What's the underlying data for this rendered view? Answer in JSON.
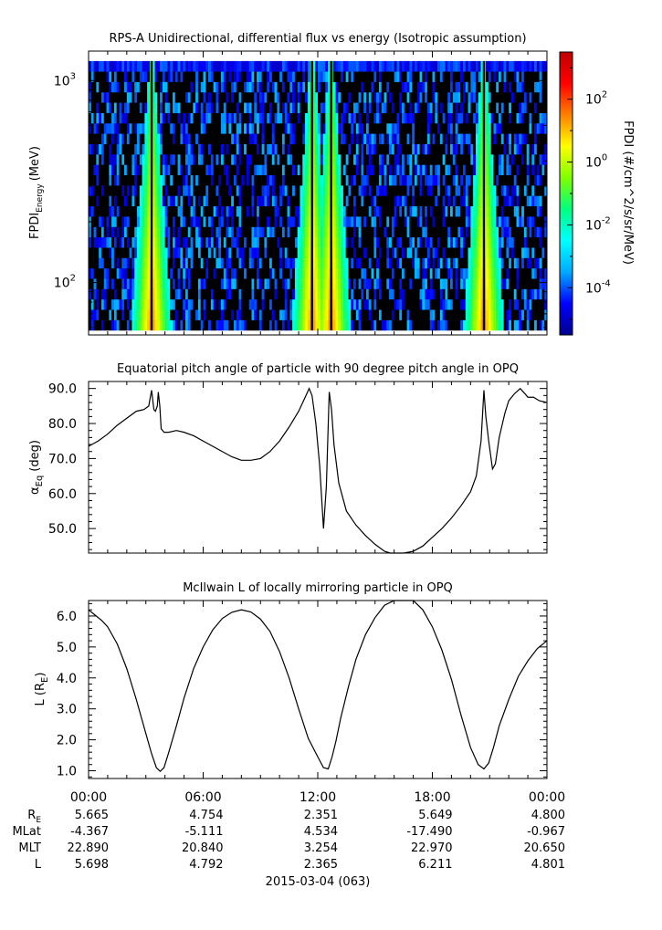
{
  "chart_data": [
    {
      "type": "heatmap",
      "title": "RPS-A Unidirectional, differential flux vs energy (Isotropic assumption)",
      "ylabel_main": "FPDI",
      "ylabel_sub": "Energy",
      "ylabel_unit": "(MeV)",
      "yscale": "log",
      "ylim": [
        55,
        1400
      ],
      "yticks": [
        {
          "value": 100,
          "label": "10",
          "exp": "2"
        },
        {
          "value": 1000,
          "label": "10",
          "exp": "3"
        }
      ],
      "energy_range": [
        58,
        1250
      ],
      "belt_passes_hours": [
        3.3,
        11.7,
        12.7,
        20.7
      ],
      "colorbar": {
        "label": "FPDI (#/cm^2/s/sr/MeV)",
        "scale": "log",
        "range": [
          -5.5,
          3.5
        ],
        "ticks": [
          {
            "value": -4,
            "label": "10",
            "exp": "-4"
          },
          {
            "value": -2,
            "label": "10",
            "exp": "-2"
          },
          {
            "value": 0,
            "label": "10",
            "exp": "0"
          },
          {
            "value": 2,
            "label": "10",
            "exp": "2"
          }
        ],
        "colors": [
          "#00008f",
          "#0000ff",
          "#00aaff",
          "#00ffff",
          "#00ff80",
          "#80ff00",
          "#ffff00",
          "#ff8000",
          "#ff0000",
          "#c00000"
        ]
      }
    },
    {
      "type": "line",
      "title": "Equatorial pitch angle of particle with 90 degree pitch angle in OPQ",
      "ylabel_main": "α",
      "ylabel_sub": "Eq",
      "ylabel_unit": "(deg)",
      "ylim": [
        43,
        92
      ],
      "yticks": [
        50,
        60,
        70,
        80,
        90
      ],
      "series": [
        {
          "x": [
            0,
            0.5,
            1,
            1.5,
            2,
            2.5,
            2.9,
            3.15,
            3.3,
            3.42,
            3.5,
            3.6,
            3.65,
            3.73,
            3.8,
            3.95,
            4.2,
            4.6,
            5,
            5.5,
            6,
            6.5,
            7,
            7.5,
            8,
            8.5,
            9,
            9.5,
            10,
            10.5,
            11,
            11.3,
            11.55,
            11.7,
            11.9,
            12.1,
            12.3,
            12.45,
            12.6,
            12.72,
            12.85,
            13.1,
            13.5,
            14,
            14.5,
            15,
            15.5,
            15.8,
            16,
            16.5,
            17,
            17.5,
            18,
            18.5,
            19,
            19.5,
            20,
            20.3,
            20.55,
            20.7,
            20.8,
            20.95,
            21.15,
            21.3,
            21.5,
            21.8,
            22,
            22.3,
            22.6,
            22.85,
            23,
            23.3,
            23.6,
            24
          ],
          "y": [
            73.5,
            75,
            77,
            79.5,
            81.5,
            83.5,
            84,
            85,
            89.5,
            84,
            83.5,
            85,
            89,
            85,
            78.5,
            77.5,
            77.5,
            78,
            77.5,
            76.5,
            75,
            73.5,
            72,
            70.5,
            69.5,
            69.5,
            70,
            72,
            75,
            79,
            83.5,
            87,
            90,
            88,
            80,
            68,
            50,
            62,
            89,
            84,
            74,
            63,
            55,
            51,
            48,
            45.5,
            43.5,
            43,
            43,
            43,
            43.5,
            45,
            47.5,
            50,
            53,
            56.5,
            60.5,
            65,
            75,
            89.5,
            82,
            75,
            67,
            68.5,
            76,
            83,
            86.5,
            88.5,
            90,
            88.5,
            87.5,
            87.5,
            86.5,
            86
          ]
        }
      ]
    },
    {
      "type": "line",
      "title": "McIlwain L of locally mirroring particle in OPQ",
      "ylabel_main": "L (R",
      "ylabel_sub": "E",
      "ylabel_unit": ")",
      "ylim": [
        0.75,
        6.5
      ],
      "yticks": [
        1,
        2,
        3,
        4,
        5,
        6
      ],
      "series": [
        {
          "x": [
            0,
            0.3,
            0.7,
            1,
            1.5,
            2,
            2.5,
            3,
            3.3,
            3.55,
            3.75,
            3.95,
            4.2,
            4.6,
            5,
            5.5,
            6,
            6.5,
            7,
            7.5,
            8,
            8.5,
            9,
            9.5,
            10,
            10.5,
            11,
            11.5,
            12,
            12.3,
            12.55,
            12.75,
            12.95,
            13.2,
            13.6,
            14,
            14.5,
            15,
            15.5,
            16,
            16.5,
            16.7,
            17,
            17.5,
            18,
            18.5,
            19,
            19.5,
            20,
            20.4,
            20.7,
            20.95,
            21.2,
            21.5,
            22,
            22.5,
            23,
            23.5,
            24
          ],
          "y": [
            6.2,
            6.05,
            5.85,
            5.65,
            5.1,
            4.3,
            3.3,
            2.2,
            1.55,
            1.1,
            0.98,
            1.1,
            1.6,
            2.45,
            3.35,
            4.3,
            5.0,
            5.55,
            5.92,
            6.12,
            6.2,
            6.13,
            5.9,
            5.5,
            4.85,
            4.0,
            3.0,
            2.05,
            1.45,
            1.1,
            1.06,
            1.45,
            1.95,
            2.7,
            3.7,
            4.6,
            5.4,
            5.95,
            6.35,
            6.6,
            6.65,
            6.6,
            6.5,
            6.2,
            5.65,
            4.9,
            3.95,
            2.8,
            1.75,
            1.2,
            1.06,
            1.25,
            1.75,
            2.45,
            3.3,
            4.05,
            4.55,
            4.95,
            5.2
          ]
        }
      ]
    }
  ],
  "time_axis": {
    "xlim": [
      0,
      24
    ],
    "major_ticks": [
      0,
      6,
      12,
      18,
      24
    ],
    "tick_labels": [
      "00:00",
      "06:00",
      "12:00",
      "18:00",
      "00:00"
    ],
    "minor_step": 1
  },
  "ephemeris": {
    "rows": [
      {
        "label": "R",
        "sub": "E",
        "values": [
          "5.665",
          "4.754",
          "2.351",
          "5.649",
          "4.800"
        ]
      },
      {
        "label": "MLat",
        "sub": "",
        "values": [
          "-4.367",
          "-5.111",
          "4.534",
          "-17.490",
          "-0.967"
        ]
      },
      {
        "label": "MLT",
        "sub": "",
        "values": [
          "22.890",
          "20.840",
          "3.254",
          "22.970",
          "20.650"
        ]
      },
      {
        "label": "L",
        "sub": "",
        "values": [
          "5.698",
          "4.792",
          "2.365",
          "6.211",
          "4.801"
        ]
      }
    ],
    "date_label": "2015-03-04 (063)"
  }
}
